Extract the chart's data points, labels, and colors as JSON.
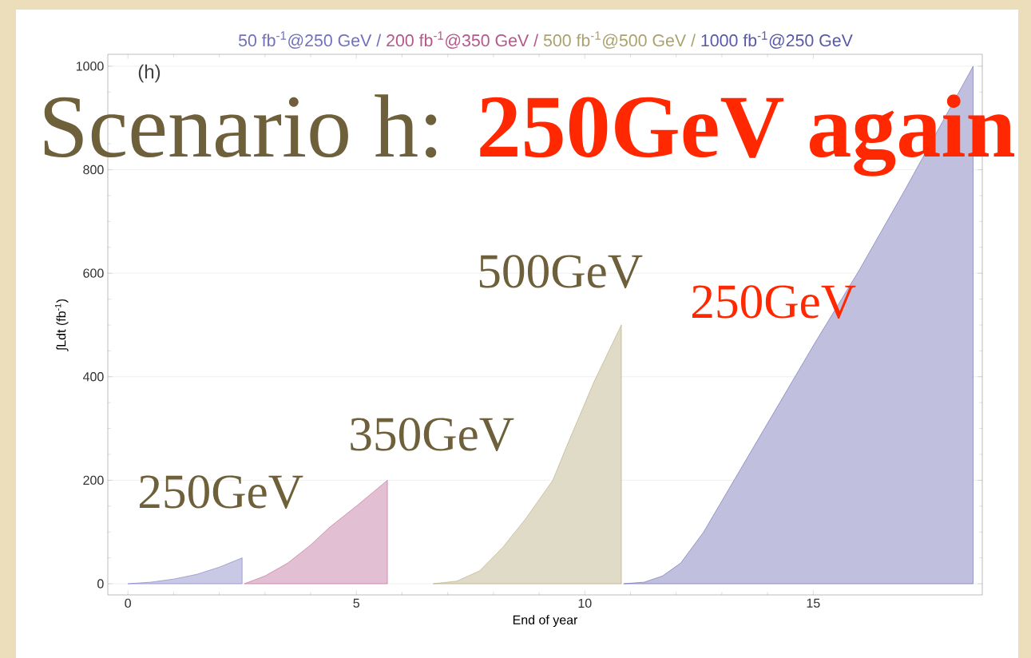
{
  "chart_data": {
    "type": "area",
    "xlabel": "End of year",
    "ylabel": "∫Ldt (fb$^{-1}$)",
    "series": [
      {
        "name": "50 fb$^{-1}$@250 GeV /",
        "color": "#7070bd",
        "x": [
          0,
          0.5,
          1,
          1.5,
          2,
          2.5
        ],
        "values": [
          0,
          3,
          9,
          18,
          32,
          50
        ]
      },
      {
        "name": "200 fb$^{-1}$@350 GeV /",
        "color": "#b5578a",
        "x": [
          2.55,
          3,
          3.5,
          4,
          4.4,
          5,
          5.68
        ],
        "values": [
          0,
          15,
          40,
          75,
          108,
          150,
          200
        ]
      },
      {
        "name": "500 fb$^{-1}$@500 GeV /",
        "color": "#aaa16c",
        "x": [
          6.68,
          7.2,
          7.7,
          8.2,
          8.7,
          9.3,
          9.6,
          10.2,
          10.8
        ],
        "values": [
          0,
          5,
          25,
          70,
          125,
          200,
          265,
          390,
          500
        ]
      },
      {
        "name": "1000 fb$^{-1}$@250 GeV",
        "color": "#5858a8",
        "x": [
          10.85,
          11.3,
          11.7,
          12.1,
          12.6,
          13.1,
          14,
          15,
          16,
          17,
          18,
          18.5
        ],
        "values": [
          0,
          3,
          15,
          40,
          100,
          175,
          310,
          460,
          605,
          760,
          920,
          1000
        ]
      }
    ],
    "xlim": [
      -0.44,
      18.7
    ],
    "ylim": [
      -21.6,
      1023
    ],
    "xticks": [
      0,
      5,
      10,
      15
    ],
    "yticks": [
      0,
      200,
      400,
      600,
      800,
      1000
    ],
    "grid": "y",
    "annotations": [
      "(h)",
      "Scenario h:",
      "250GeV again",
      "250GeV",
      "350GeV",
      "500GeV",
      "250GeV"
    ]
  }
}
